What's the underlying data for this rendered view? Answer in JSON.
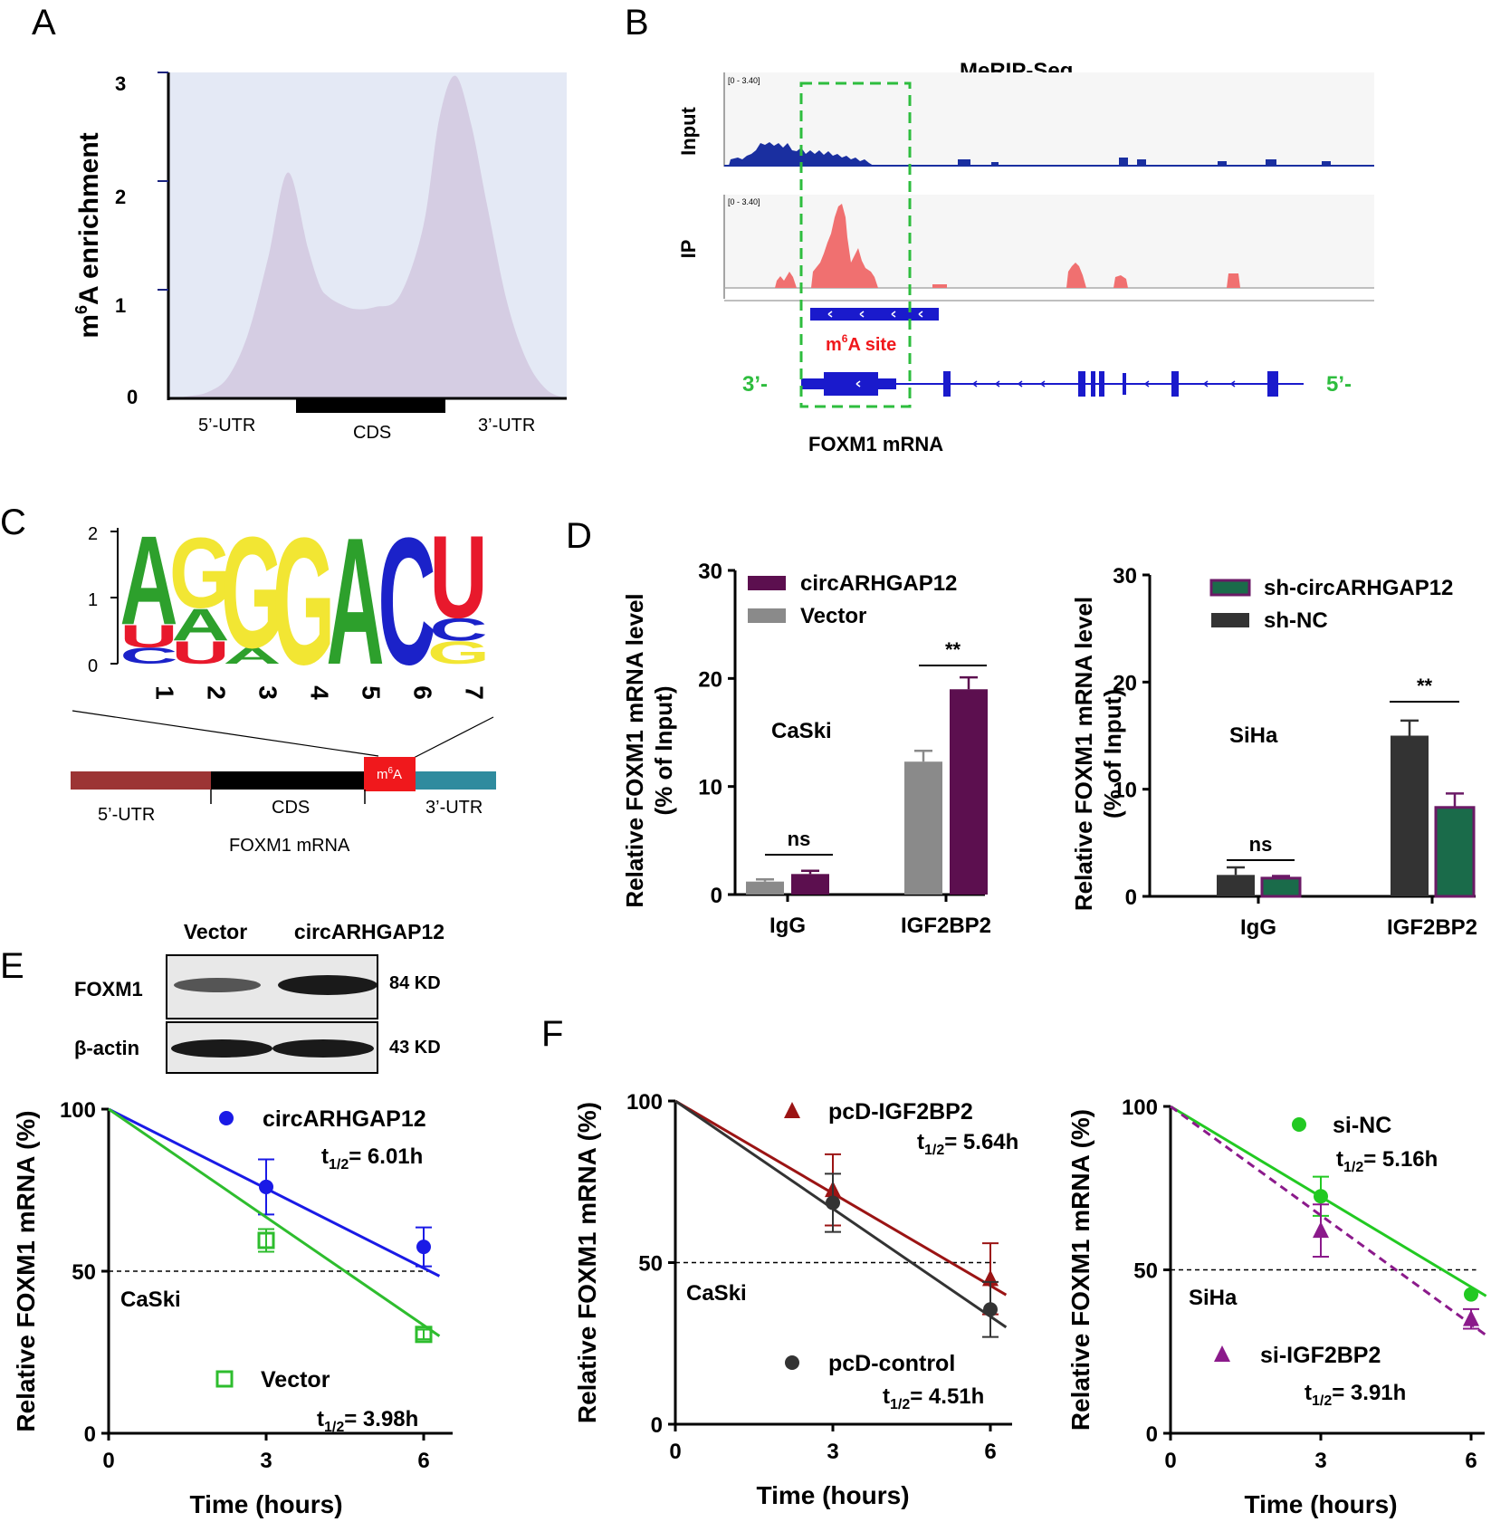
{
  "panels": {
    "A": "A",
    "B": "B",
    "C": "C",
    "D": "D",
    "E": "E",
    "F": "F"
  },
  "A": {
    "ylabel_pre": "m",
    "ylabel_sup": "6",
    "ylabel_post": "A enrichment",
    "yticks": [
      "0",
      "1",
      "2",
      "3"
    ],
    "regions": [
      "5’-UTR",
      "CDS",
      "3’-UTR"
    ],
    "fill": "#d5cde3",
    "bg": "#e4e9f5",
    "chart_data": {
      "type": "area",
      "title": "",
      "ylabel": "m6A enrichment",
      "ylim": [
        0,
        3
      ],
      "x": [
        0,
        0.05,
        0.1,
        0.15,
        0.2,
        0.25,
        0.3,
        0.35,
        0.38,
        0.4,
        0.43,
        0.47,
        0.52,
        0.58,
        0.64,
        0.68,
        0.72,
        0.76,
        0.8,
        0.85,
        0.9,
        0.95,
        1.0
      ],
      "values": [
        0.0,
        0.02,
        0.06,
        0.2,
        0.6,
        1.3,
        2.1,
        1.4,
        1.05,
        0.95,
        0.88,
        0.83,
        0.85,
        0.95,
        1.6,
        2.6,
        3.0,
        2.55,
        1.8,
        0.9,
        0.35,
        0.08,
        0.0
      ]
    }
  },
  "B": {
    "title": "MeRIP-Seq",
    "track_input": "Input",
    "track_ip": "IP",
    "range": "[0 - 3.40]",
    "site_pre": "m",
    "site_sup": "6",
    "site_post": "A site",
    "end3": "3’-",
    "end5": "5’-",
    "gene": "FOXM1 mRNA",
    "input_color": "#1a2fa0",
    "ip_color": "#f07070",
    "box_color": "#2ebd3e"
  },
  "C": {
    "logo_yticks": [
      "0",
      "1",
      "2"
    ],
    "positions": [
      "1",
      "2",
      "3",
      "4",
      "5",
      "6",
      "7"
    ],
    "columns": [
      [
        {
          "l": "C",
          "c": "#1b22c9",
          "h": 0.25
        },
        {
          "l": "U",
          "c": "#e8192c",
          "h": 0.35
        },
        {
          "l": "A",
          "c": "#2da02c",
          "h": 1.4
        }
      ],
      [
        {
          "l": "U",
          "c": "#e8192c",
          "h": 0.35
        },
        {
          "l": "A",
          "c": "#2da02c",
          "h": 0.5
        },
        {
          "l": "G",
          "c": "#f2e633",
          "h": 1.1
        }
      ],
      [
        {
          "l": "A",
          "c": "#2da02c",
          "h": 0.25
        },
        {
          "l": "G",
          "c": "#f2e633",
          "h": 1.75
        }
      ],
      [
        {
          "l": "G",
          "c": "#f2e633",
          "h": 2.0
        }
      ],
      [
        {
          "l": "A",
          "c": "#2da02c",
          "h": 2.0
        }
      ],
      [
        {
          "l": "C",
          "c": "#1b22c9",
          "h": 2.0
        }
      ],
      [
        {
          "l": "G",
          "c": "#f2e633",
          "h": 0.35
        },
        {
          "l": "C",
          "c": "#1b22c9",
          "h": 0.35
        },
        {
          "l": "U",
          "c": "#e8192c",
          "h": 1.3
        }
      ]
    ],
    "mrna": {
      "utr5": "5’-UTR",
      "cds": "CDS",
      "utr3": "3’-UTR",
      "site_pre": "m",
      "site_sup": "6",
      "site_post": "A",
      "name": "FOXM1 mRNA",
      "utr5_color": "#9c3535",
      "cds_color": "#000000",
      "site_color": "#f0181c",
      "utr3_color": "#2f8b9e"
    }
  },
  "D": {
    "ylabel1": "Relative FOXM1 mRNA level",
    "ylabel2": "(% of Input)",
    "left": {
      "cell": "CaSki",
      "legend": [
        "circARHGAP12",
        "Vector"
      ],
      "colors": [
        "#5c0f4f",
        "#8a8a8a"
      ],
      "yticks": [
        "0",
        "10",
        "20",
        "30"
      ],
      "sig": [
        "ns",
        "**"
      ],
      "chart_data": {
        "type": "bar",
        "categories": [
          "IgG",
          "IGF2BP2"
        ],
        "ylim": [
          0,
          30
        ],
        "ylabel": "Relative FOXM1 mRNA level (% of Input)",
        "series": [
          {
            "name": "Vector",
            "values": [
              1.2,
              12.3
            ],
            "err": [
              0.2,
              1.0
            ]
          },
          {
            "name": "circARHGAP12",
            "values": [
              1.9,
              19.0
            ],
            "err": [
              0.3,
              1.1
            ]
          }
        ]
      }
    },
    "right": {
      "cell": "SiHa",
      "legend": [
        "sh-circARHGAP12",
        "sh-NC"
      ],
      "colors": [
        "#1a6b4a",
        "#333333"
      ],
      "edge": "#6b1a66",
      "yticks": [
        "0",
        "10",
        "20",
        "30"
      ],
      "sig": [
        "ns",
        "**"
      ],
      "chart_data": {
        "type": "bar",
        "categories": [
          "IgG",
          "IGF2BP2"
        ],
        "ylim": [
          0,
          30
        ],
        "ylabel": "Relative FOXM1 mRNA level (% of Input)",
        "series": [
          {
            "name": "sh-NC",
            "values": [
              2.0,
              15.0
            ],
            "err": [
              0.7,
              1.4
            ]
          },
          {
            "name": "sh-circARHGAP12",
            "values": [
              1.7,
              8.3
            ],
            "err": [
              0.2,
              1.3
            ]
          }
        ]
      }
    }
  },
  "E": {
    "blot": {
      "cols": [
        "Vector",
        "circARHGAP12"
      ],
      "rows": [
        "FOXM1",
        "β-actin"
      ],
      "sizes": [
        "84 KD",
        "43 KD"
      ]
    },
    "ylabel": "Relative FOXM1 mRNA (%)",
    "xlabel": "Time (hours)",
    "cell": "CaSki",
    "xticks": [
      "0",
      "3",
      "6"
    ],
    "yticks": [
      "0",
      "50",
      "100"
    ],
    "leg1": "circARHGAP12",
    "hl1": "= 6.01h",
    "leg2": "Vector",
    "hl2": "= 3.98h",
    "t": "t",
    "sub": "1/2",
    "chart_data": {
      "type": "scatter",
      "x": [
        0,
        3,
        6
      ],
      "xlim": [
        0,
        6
      ],
      "ylim": [
        0,
        100
      ],
      "xlabel": "Time (hours)",
      "ylabel": "Relative FOXM1 mRNA (%)",
      "series": [
        {
          "name": "circARHGAP12",
          "color": "#1a1ae6",
          "y": [
            100,
            76,
            57.5
          ],
          "err": [
            0,
            8.5,
            6
          ],
          "fit_end": 48.5
        },
        {
          "name": "Vector",
          "color": "#2ebd2e",
          "y": [
            100,
            59.5,
            30.5
          ],
          "err": [
            0,
            3.5,
            1.5
          ],
          "fit_end": 30
        }
      ]
    }
  },
  "F1": {
    "ylabel": "Relative FOXM1 mRNA (%)",
    "xlabel": "Time (hours)",
    "cell": "CaSki",
    "xticks": [
      "0",
      "3",
      "6"
    ],
    "yticks": [
      "0",
      "50",
      "100"
    ],
    "leg1": "pcD-IGF2BP2",
    "hl1": "= 5.64h",
    "leg2": "pcD-control",
    "hl2": "= 4.51h",
    "t": "t",
    "sub": "1/2",
    "chart_data": {
      "type": "scatter",
      "x": [
        0,
        3,
        6
      ],
      "xlim": [
        0,
        6
      ],
      "ylim": [
        0,
        100
      ],
      "xlabel": "Time (hours)",
      "ylabel": "Relative FOXM1 mRNA (%)",
      "series": [
        {
          "name": "pcD-IGF2BP2",
          "color": "#9b1414",
          "y": [
            100,
            72.5,
            45
          ],
          "err": [
            0,
            11,
            11
          ],
          "fit_end": 40
        },
        {
          "name": "pcD-control",
          "color": "#333333",
          "y": [
            100,
            68.5,
            35.5
          ],
          "err": [
            0,
            9,
            8.5
          ],
          "fit_end": 30
        }
      ]
    }
  },
  "F2": {
    "ylabel": "Relative FOXM1 mRNA (%)",
    "xlabel": "Time (hours)",
    "cell": "SiHa",
    "xticks": [
      "0",
      "3",
      "6"
    ],
    "yticks": [
      "0",
      "50",
      "100"
    ],
    "leg1": "si-NC",
    "hl1": "= 5.16h",
    "leg2": "si-IGF2BP2",
    "hl2": "= 3.91h",
    "t": "t",
    "sub": "1/2",
    "chart_data": {
      "type": "scatter",
      "x": [
        0,
        3,
        6
      ],
      "xlim": [
        0,
        6
      ],
      "ylim": [
        0,
        100
      ],
      "xlabel": "Time (hours)",
      "ylabel": "Relative FOXM1 mRNA (%)",
      "series": [
        {
          "name": "si-NC",
          "color": "#22c922",
          "y": [
            100,
            72.5,
            42.5
          ],
          "err": [
            0,
            6,
            0
          ],
          "fit_end": 42
        },
        {
          "name": "si-IGF2BP2",
          "color": "#8b1a8b",
          "y": [
            100,
            62,
            35
          ],
          "err": [
            0,
            8,
            3
          ],
          "fit_end": 30
        }
      ]
    }
  }
}
